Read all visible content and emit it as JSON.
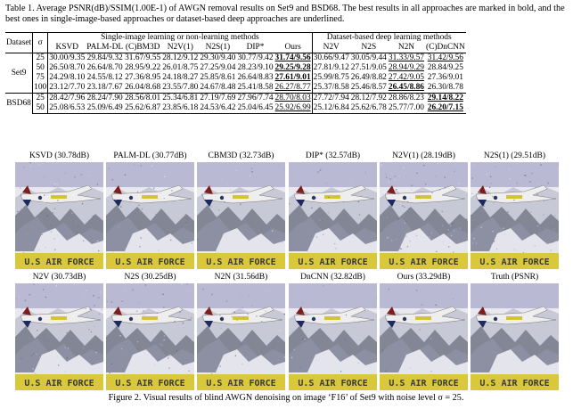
{
  "table_caption": "Table 1. Average PSNR(dB)/SSIM(1.00E-1) of AWGN removal results on Set9 and BSD68. The best results in all approaches are marked in bold, and the best ones in single-image-based approaches or dataset-based deep approaches are underlined.",
  "table": {
    "dataset_header": "Dataset",
    "sigma_header": "σ",
    "group1_header": "Single-image learning or non-learning methods",
    "group2_header": "Dataset-based deep learning methods",
    "methods": [
      "KSVD",
      "PALM-DL",
      "(C)BM3D",
      "N2V(1)",
      "N2S(1)",
      "DIP*",
      "Ours",
      "N2V",
      "N2S",
      "N2N",
      "(C)DnCNN"
    ],
    "groups": [
      {
        "name": "Set9",
        "rows": [
          {
            "sigma": "25",
            "cells": [
              {
                "t": "30.00/9.35"
              },
              {
                "t": "29.84/9.32"
              },
              {
                "t": "31.67/9.55"
              },
              {
                "t": "28.12/9.12"
              },
              {
                "t": "29.30/9.40"
              },
              {
                "t": "30.77/9.42"
              },
              {
                "t": "31.74/9.56",
                "s": "bu"
              },
              {
                "t": "30.66/9.47"
              },
              {
                "t": "30.05/9.44"
              },
              {
                "t": "31.33/9.57",
                "s": "u2"
              },
              {
                "t": "31.42/9.56",
                "s": "u"
              }
            ]
          },
          {
            "sigma": "50",
            "cells": [
              {
                "t": "26.50/8.70"
              },
              {
                "t": "26.64/8.70"
              },
              {
                "t": "28.95/9.22"
              },
              {
                "t": "26.01/8.75"
              },
              {
                "t": "27.25/9.04"
              },
              {
                "t": "28.23/9.10"
              },
              {
                "t": "29.25/9.28",
                "s": "bu"
              },
              {
                "t": "27.81/9.12"
              },
              {
                "t": "27.51/9.05"
              },
              {
                "t": "28.94/9.29",
                "s": "u"
              },
              {
                "t": "28.84/9.25"
              }
            ]
          },
          {
            "sigma": "75",
            "cells": [
              {
                "t": "24.29/8.10"
              },
              {
                "t": "24.55/8.12"
              },
              {
                "t": "27.36/8.95"
              },
              {
                "t": "24.18/8.27"
              },
              {
                "t": "25.85/8.61"
              },
              {
                "t": "26.64/8.83"
              },
              {
                "t": "27.61/9.01",
                "s": "bu"
              },
              {
                "t": "25.99/8.75"
              },
              {
                "t": "26.49/8.82"
              },
              {
                "t": "27.42/9.05",
                "s": "u"
              },
              {
                "t": "27.36/9.01"
              }
            ]
          },
          {
            "sigma": "100",
            "cells": [
              {
                "t": "23.12/7.70"
              },
              {
                "t": "23.18/7.67"
              },
              {
                "t": "26.04/8.68"
              },
              {
                "t": "23.55/7.80"
              },
              {
                "t": "24.67/8.48"
              },
              {
                "t": "25.41/8.58"
              },
              {
                "t": "26.27/8.77",
                "s": "u"
              },
              {
                "t": "25.37/8.58"
              },
              {
                "t": "25.46/8.57"
              },
              {
                "t": "26.45/8.86",
                "s": "bu"
              },
              {
                "t": "26.30/8.78"
              }
            ]
          }
        ]
      },
      {
        "name": "BSD68",
        "rows": [
          {
            "sigma": "25",
            "cells": [
              {
                "t": "28.42/7.96"
              },
              {
                "t": "28.24/7.90"
              },
              {
                "t": "28.56/8.01"
              },
              {
                "t": "25.34/6.81"
              },
              {
                "t": "27.19/7.69"
              },
              {
                "t": "27.96/7.74"
              },
              {
                "t": "28.70/8.03",
                "s": "u"
              },
              {
                "t": "27.72/7.94"
              },
              {
                "t": "28.12/7.92"
              },
              {
                "t": "28.86/8.23"
              },
              {
                "t": "29.14/8.22",
                "s": "bu"
              }
            ]
          },
          {
            "sigma": "50",
            "cells": [
              {
                "t": "25.08/6.53"
              },
              {
                "t": "25.09/6.49"
              },
              {
                "t": "25.62/6.87"
              },
              {
                "t": "23.85/6.18"
              },
              {
                "t": "24.53/6.42"
              },
              {
                "t": "25.04/6.45"
              },
              {
                "t": "25.92/6.99",
                "s": "u"
              },
              {
                "t": "25.12/6.84"
              },
              {
                "t": "25.62/6.78"
              },
              {
                "t": "25.77/7.00"
              },
              {
                "t": "26.20/7.15",
                "s": "bu"
              }
            ]
          }
        ]
      }
    ]
  },
  "figure": {
    "row1": [
      {
        "label": "KSVD (30.78dB)",
        "noise": 0.35
      },
      {
        "label": "PALM-DL (30.77dB)",
        "noise": 0.35
      },
      {
        "label": "CBM3D (32.73dB)",
        "noise": 0.15
      },
      {
        "label": "DIP* (32.57dB)",
        "noise": 0.2
      },
      {
        "label": "N2V(1) (28.19dB)",
        "noise": 0.6
      },
      {
        "label": "N2S(1) (29.51dB)",
        "noise": 0.45
      }
    ],
    "row2": [
      {
        "label": "N2V (30.73dB)",
        "noise": 0.35
      },
      {
        "label": "N2S (30.25dB)",
        "noise": 0.4
      },
      {
        "label": "N2N (31.56dB)",
        "noise": 0.25
      },
      {
        "label": "DnCNN (32.82dB)",
        "noise": 0.15
      },
      {
        "label": "Ours (33.29dB)",
        "noise": 0.1
      },
      {
        "label": "Truth (PSNR)",
        "noise": 0.0
      }
    ],
    "banner_text": "U.S AIR FORCE",
    "caption": "Figure 2. Visual results of blind AWGN denoising on image ‘F16’ of Set9 with noise level σ = 25."
  },
  "colors": {
    "banner_yellow": "#d9c93a",
    "sky": "#b9b9d4",
    "snow": "#e8e8ee",
    "rock": "#4a4f5f",
    "plane": "#eeeeee"
  }
}
